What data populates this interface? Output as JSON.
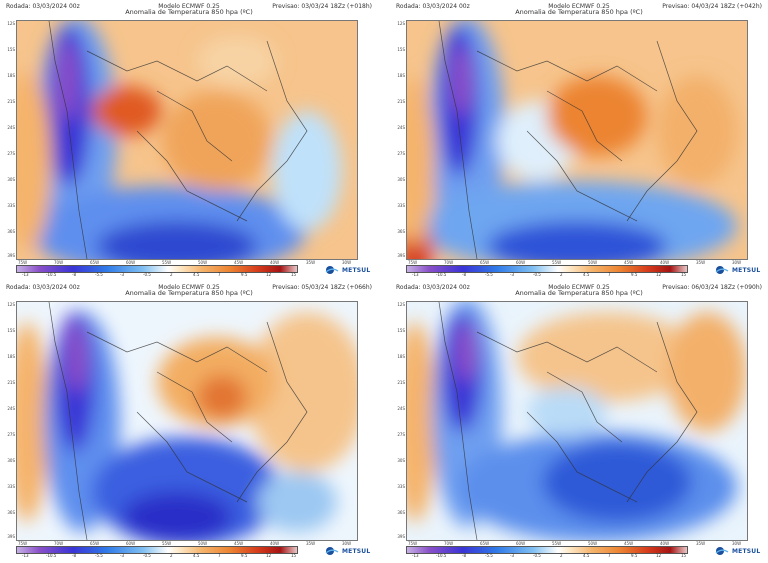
{
  "panels": [
    {
      "run": "Rodada: 03/03/2024  00z",
      "model": "Modelo  ECMWF  0.25",
      "title": "Anomalia  de  Temperatura  850  hpa  (ºC)",
      "forecast": "Previsao: 03/03/24  18Zz  (+018h)"
    },
    {
      "run": "Rodada: 03/03/2024  00z",
      "model": "Modelo  ECMWF  0.25",
      "title": "Anomalia  de  Temperatura  850  hpa  (ºC)",
      "forecast": "Previsao: 04/03/24  18Zz  (+042h)"
    },
    {
      "run": "Rodada: 03/03/2024  00z",
      "model": "Modelo  ECMWF  0.25",
      "title": "Anomalia  de  Temperatura  850  hpa  (ºC)",
      "forecast": "Previsao: 05/03/24  18Zz  (+066h)"
    },
    {
      "run": "Rodada: 03/03/2024  00z",
      "model": "Modelo  ECMWF  0.25",
      "title": "Anomalia  de  Temperatura  850  hpa  (ºC)",
      "forecast": "Previsao: 06/03/24  18Zz  (+090h)"
    }
  ],
  "lat_labels": [
    "12S",
    "15S",
    "18S",
    "21S",
    "24S",
    "27S",
    "30S",
    "33S",
    "36S",
    "39S"
  ],
  "lon_labels": [
    "75W",
    "70W",
    "65W",
    "60W",
    "55W",
    "50W",
    "45W",
    "40W",
    "35W",
    "30W"
  ],
  "colorbar_labels": [
    "-13",
    "-10.5",
    "-8",
    "-5.5",
    "-3",
    "-0.5",
    "2",
    "4.5",
    "7",
    "9.5",
    "12",
    "15"
  ],
  "logo": {
    "text": "METSUL",
    "icon": "metsul-logo-icon",
    "color": "#1a4f9c"
  },
  "colors": {
    "cold_extreme": "#8a50c8",
    "cold": "#2f7ae8",
    "neutral": "#ffffff",
    "warm": "#f5b46c",
    "hot": "#d63c1c"
  }
}
